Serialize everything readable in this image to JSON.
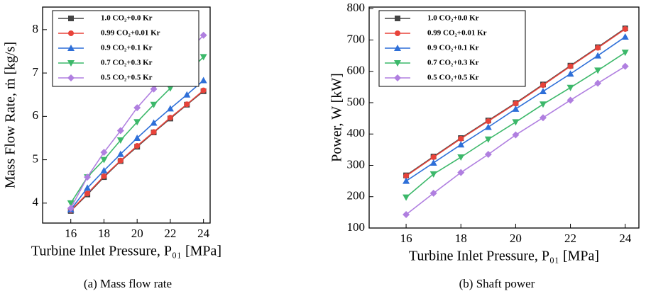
{
  "chart_data": [
    {
      "type": "line",
      "caption": "(a) Mass flow rate",
      "x_label": "Turbine Inlet Pressure, P₀₁ [MPa]",
      "y_label": "Mass Flow Rate, ṁ [kg/s]",
      "x": [
        16,
        17,
        18,
        19,
        20,
        21,
        22,
        23,
        24
      ],
      "xlim": [
        14.3,
        24.4
      ],
      "xticks": [
        16,
        18,
        20,
        22,
        24
      ],
      "ylim": [
        3.54,
        8.52
      ],
      "yticks": [
        4,
        5,
        6,
        7,
        8
      ],
      "series": [
        {
          "name": "1.0 CO₂+0.0 Kr",
          "color": "#444444",
          "marker": "square",
          "values": [
            3.82,
            4.2,
            4.6,
            4.97,
            5.3,
            5.63,
            5.95,
            6.27,
            6.58
          ]
        },
        {
          "name": "0.99 CO₂+0.01 Kr",
          "color": "#e8433a",
          "marker": "circle",
          "values": [
            3.83,
            4.22,
            4.62,
            4.98,
            5.32,
            5.64,
            5.97,
            6.28,
            6.6
          ]
        },
        {
          "name": "0.9 CO₂+0.1 Kr",
          "color": "#2e6fd8",
          "marker": "triangle-up",
          "values": [
            3.85,
            4.35,
            4.75,
            5.13,
            5.5,
            5.85,
            6.18,
            6.5,
            6.83
          ]
        },
        {
          "name": "0.7 CO₂+0.3 Kr",
          "color": "#3cb86a",
          "marker": "triangle-down",
          "values": [
            4.0,
            4.6,
            5.0,
            5.45,
            5.87,
            6.27,
            6.65,
            7.0,
            7.37
          ]
        },
        {
          "name": "0.5 CO₂+0.5 Kr",
          "color": "#b07fe0",
          "marker": "diamond",
          "values": [
            3.88,
            4.6,
            5.17,
            5.67,
            6.2,
            6.63,
            7.05,
            7.47,
            7.87
          ]
        }
      ]
    },
    {
      "type": "line",
      "caption": "(b) Shaft power",
      "x_label": "Turbine Inlet Pressure, P₀₁ [MPa]",
      "y_label": "Power, W [kW]",
      "x": [
        16,
        17,
        18,
        19,
        20,
        21,
        22,
        23,
        24
      ],
      "xlim": [
        14.65,
        24.5
      ],
      "xticks": [
        16,
        18,
        20,
        22,
        24
      ],
      "ylim": [
        100,
        805
      ],
      "yticks": [
        100,
        200,
        300,
        400,
        500,
        600,
        700,
        800
      ],
      "series": [
        {
          "name": "1.0 CO₂+0.0 Kr",
          "color": "#444444",
          "marker": "square",
          "values": [
            268,
            328,
            387,
            443,
            499,
            558,
            618,
            677,
            737
          ]
        },
        {
          "name": "0.99 CO₂+0.01 Kr",
          "color": "#e8433a",
          "marker": "circle",
          "values": [
            266,
            326,
            385,
            441,
            497,
            556,
            616,
            675,
            735
          ]
        },
        {
          "name": "0.9 CO₂+0.1 Kr",
          "color": "#2e6fd8",
          "marker": "triangle-up",
          "values": [
            250,
            308,
            366,
            422,
            480,
            536,
            592,
            650,
            710
          ]
        },
        {
          "name": "0.7 CO₂+0.3 Kr",
          "color": "#3cb86a",
          "marker": "triangle-down",
          "values": [
            198,
            272,
            326,
            383,
            438,
            495,
            548,
            603,
            660
          ]
        },
        {
          "name": "0.5 CO₂+0.5 Kr",
          "color": "#b07fe0",
          "marker": "diamond",
          "values": [
            143,
            211,
            277,
            335,
            397,
            452,
            508,
            562,
            616
          ]
        }
      ]
    }
  ]
}
